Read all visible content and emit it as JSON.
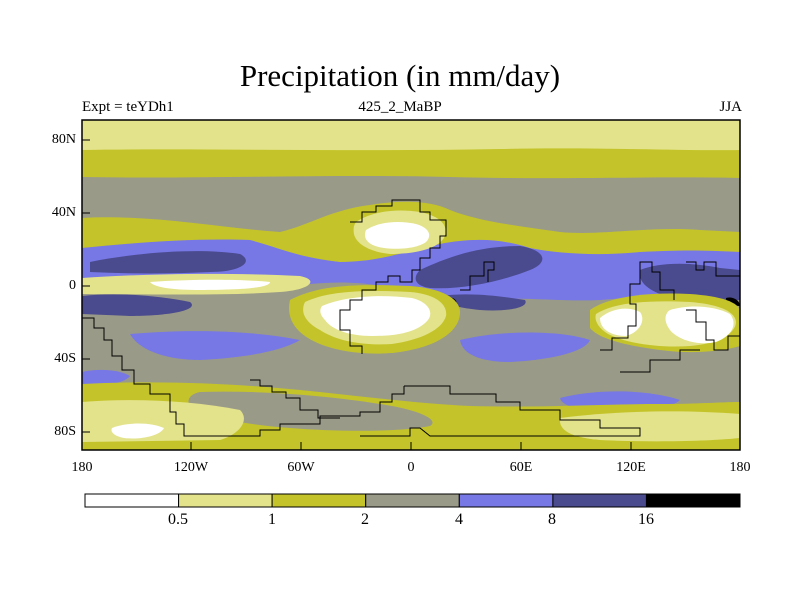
{
  "title": "Precipitation (in mm/day)",
  "subtitle": {
    "left": "Expt = teYDh1",
    "center": "425_2_MaBP",
    "right": "JJA"
  },
  "map": {
    "lat_ticks": [
      "80N",
      "40N",
      "0",
      "40S",
      "80S"
    ],
    "lon_ticks": [
      "180",
      "120W",
      "60W",
      "0",
      "60E",
      "120E",
      "180"
    ]
  },
  "colorbar": {
    "levels": [
      "0.5",
      "1",
      "2",
      "4",
      "8",
      "16"
    ],
    "colors": [
      "#ffffff",
      "#e3e38c",
      "#c4c42a",
      "#9a9a88",
      "#7777e6",
      "#4a4a8e",
      "#000000"
    ]
  },
  "colors": {
    "white": "#ffffff",
    "light_yellow": "#e3e38c",
    "olive": "#c4c42a",
    "grey": "#9a9a88",
    "blue": "#7777e6",
    "dark_blue": "#4a4a8e",
    "black": "#000000"
  }
}
